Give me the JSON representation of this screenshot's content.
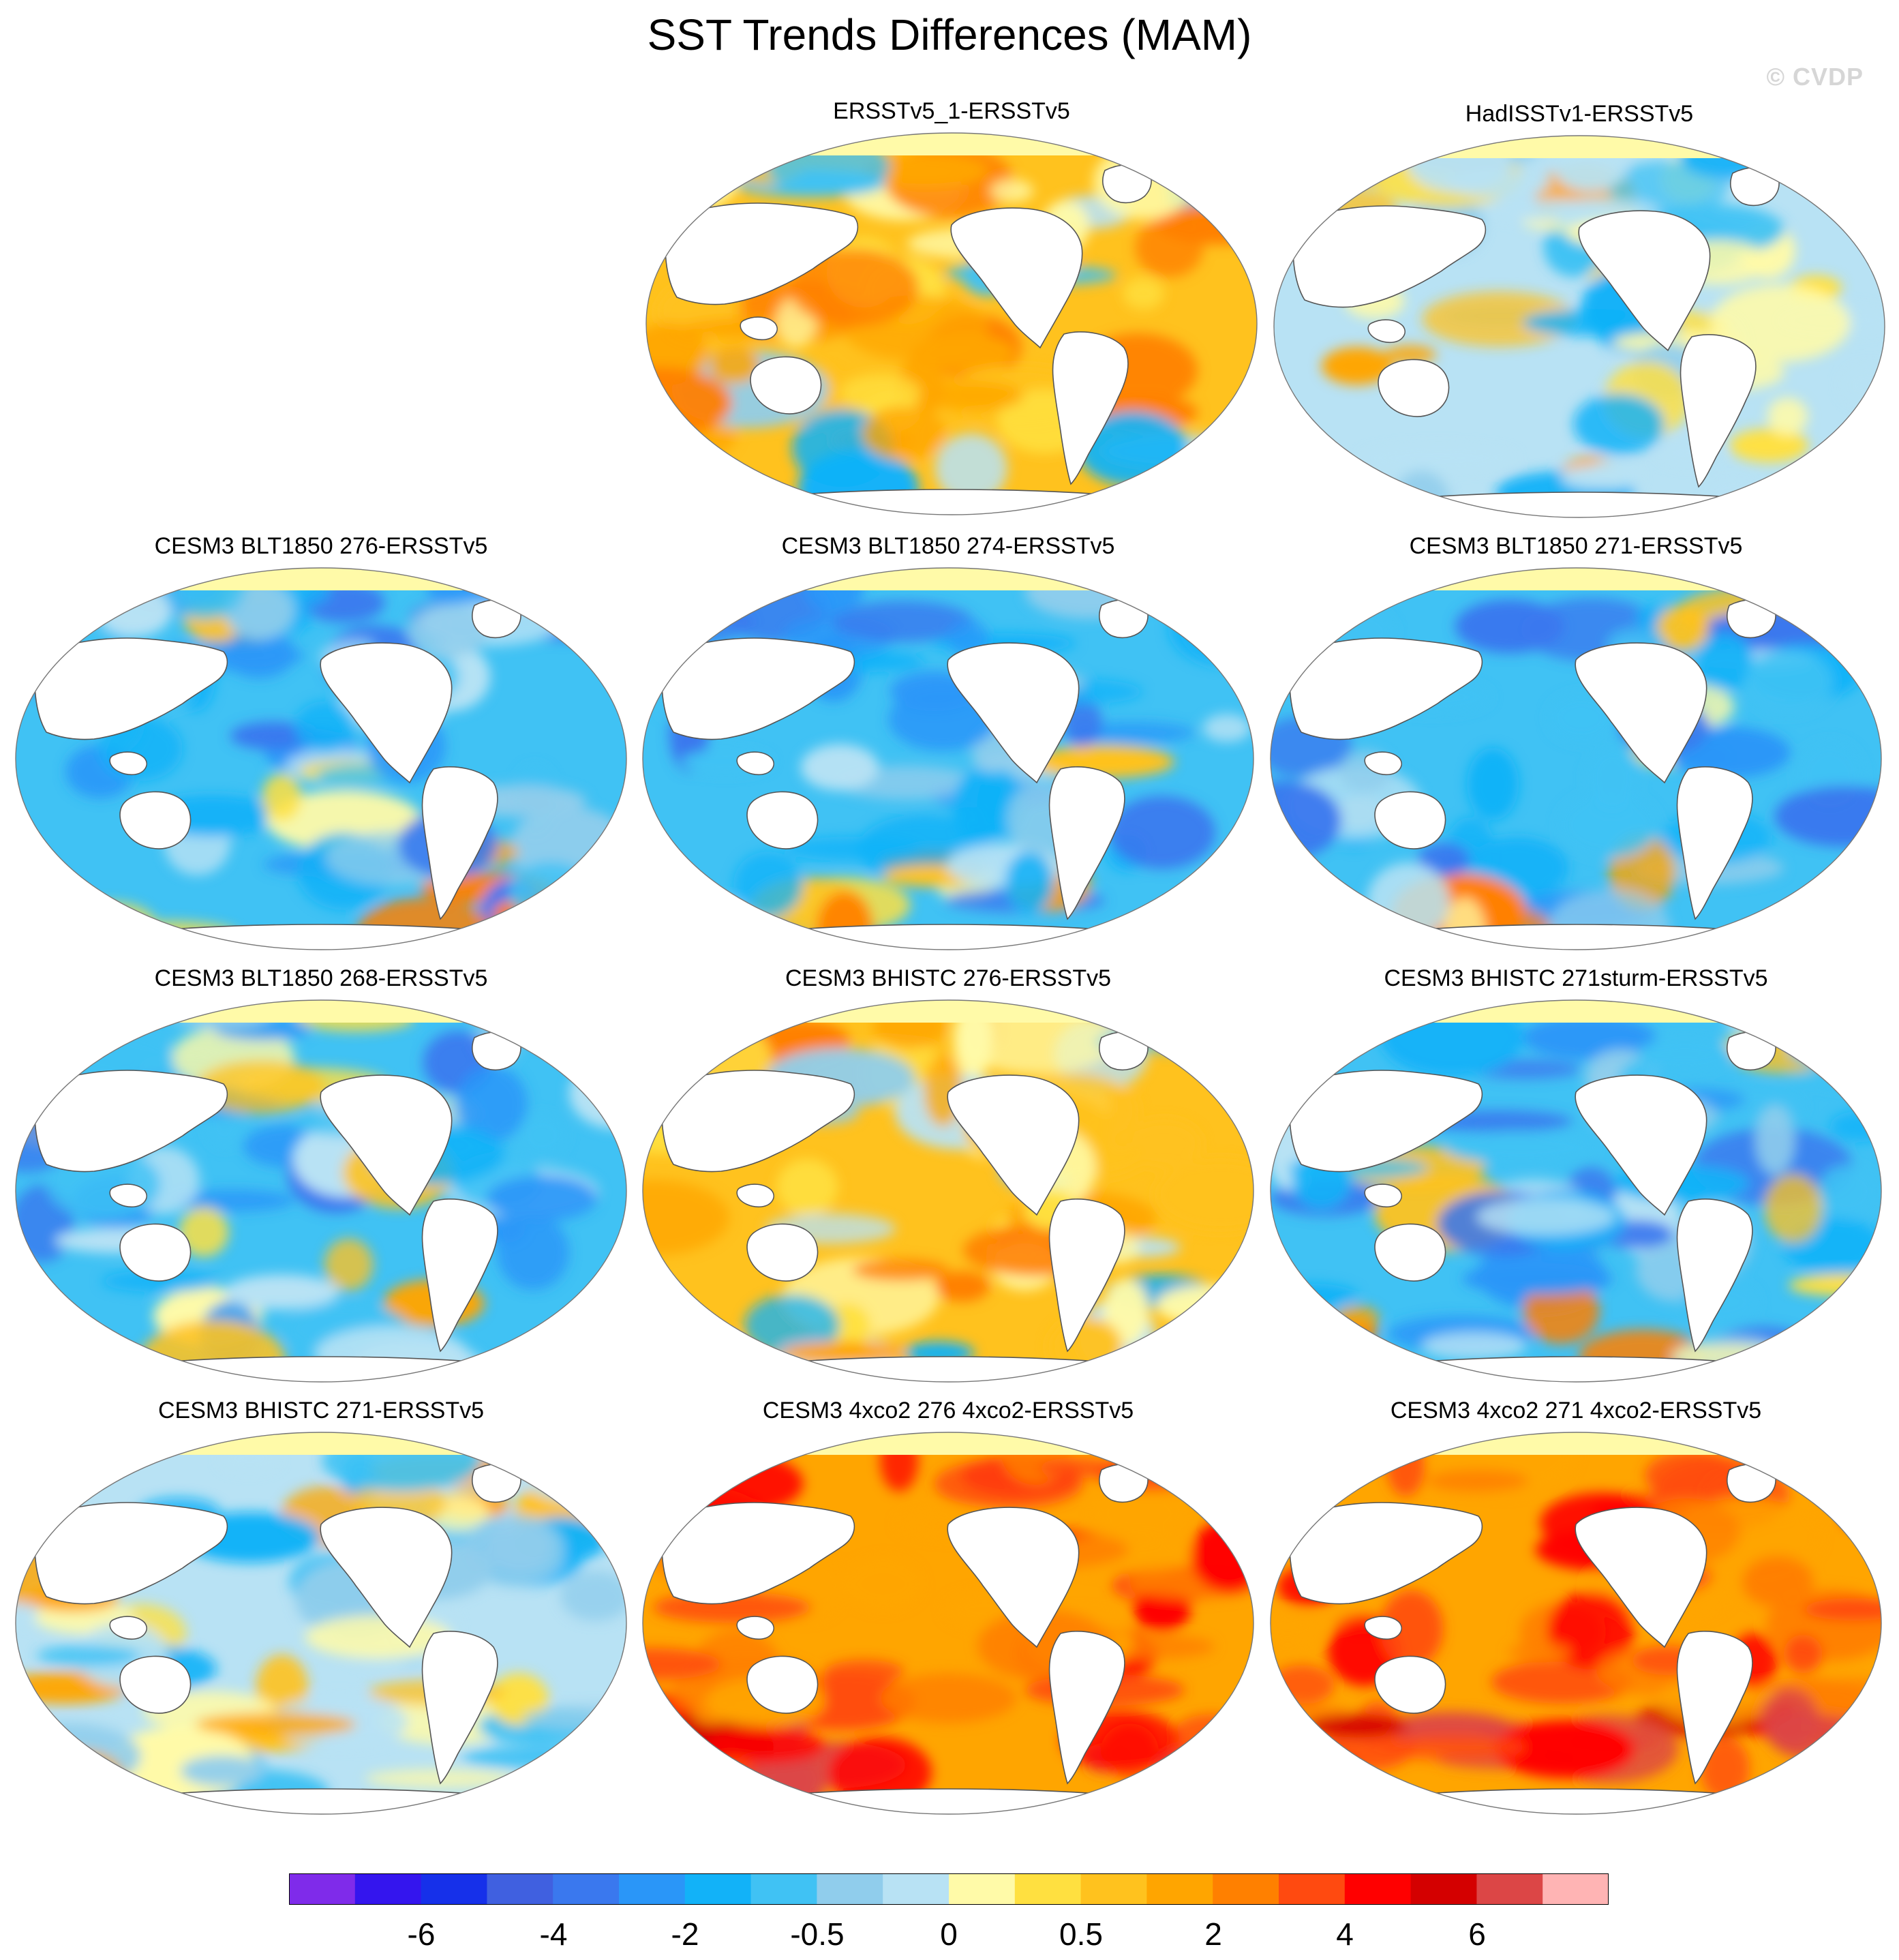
{
  "title": "SST Trends Differences (MAM)",
  "watermark": "© CVDP",
  "colors": {
    "land": "#ffffff",
    "coast": "#555555",
    "background": "#ffffff"
  },
  "panels": [
    {
      "id": "p1",
      "title": "ERSSTv5_1-ERSSTv5",
      "style": "mixed-warm"
    },
    {
      "id": "p2",
      "title": "HadISSTv1-ERSSTv5",
      "style": "mixed"
    },
    {
      "id": "p3",
      "title": "CESM3 BLT1850 276-ERSSTv5",
      "style": "cool"
    },
    {
      "id": "p4",
      "title": "CESM3 BLT1850 274-ERSSTv5",
      "style": "cool"
    },
    {
      "id": "p5",
      "title": "CESM3 BLT1850 271-ERSSTv5",
      "style": "cool"
    },
    {
      "id": "p6",
      "title": "CESM3 BLT1850 268-ERSSTv5",
      "style": "cool"
    },
    {
      "id": "p7",
      "title": "CESM3 BHISTC 276-ERSSTv5",
      "style": "mixed-warm"
    },
    {
      "id": "p8",
      "title": "CESM3 BHISTC 271sturm-ERSSTv5",
      "style": "cool"
    },
    {
      "id": "p9",
      "title": "CESM3 BHISTC 271-ERSSTv5",
      "style": "mixed"
    },
    {
      "id": "p10",
      "title": "CESM3 4xco2 276 4xco2-ERSSTv5",
      "style": "hot"
    },
    {
      "id": "p11",
      "title": "CESM3 4xco2 271 4xco2-ERSSTv5",
      "style": "hot"
    }
  ],
  "colorbar": {
    "colors": [
      "#7f2bea",
      "#3415ee",
      "#1630ea",
      "#4060e0",
      "#3a78ee",
      "#2a96f8",
      "#12b2f8",
      "#40c2f4",
      "#90cdec",
      "#b8e2f4",
      "#fffaa8",
      "#ffe040",
      "#ffc21e",
      "#ffa500",
      "#ff8000",
      "#ff4a10",
      "#ff0000",
      "#d40000",
      "#dc4646",
      "#ffb4b4"
    ],
    "tick_labels": [
      "-6",
      "-4",
      "-2",
      "-0.5",
      "0",
      "0.5",
      "2",
      "4",
      "6"
    ]
  }
}
